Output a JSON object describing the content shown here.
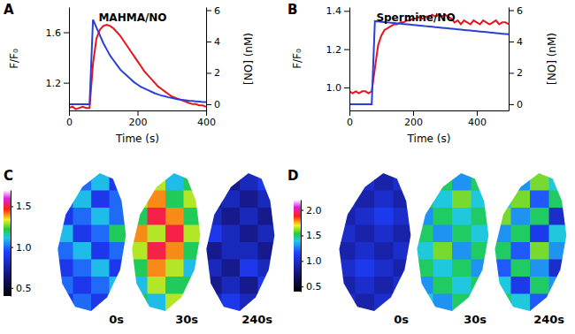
{
  "chart_data": [
    {
      "type": "line",
      "annotations": [
        "A"
      ],
      "title": "MAHMA/NO",
      "x_label": "Time (s)",
      "y_label": "F/F₀",
      "y2_label": "[NO] (nM)",
      "x": [
        0,
        10,
        20,
        30,
        40,
        50,
        60,
        70,
        80,
        90,
        100,
        110,
        120,
        130,
        140,
        150,
        160,
        170,
        180,
        190,
        200,
        210,
        220,
        230,
        240,
        250,
        260,
        270,
        280,
        290,
        300,
        310,
        320,
        330,
        340,
        350,
        360,
        370,
        380,
        390,
        400
      ],
      "xlim": [
        0,
        400
      ],
      "xticks": [
        0,
        200,
        400
      ],
      "ylim": [
        0.98,
        1.8
      ],
      "yticks": [
        1.2,
        1.6
      ],
      "y2lim": [
        -0.4,
        6.2
      ],
      "y2ticks": [
        0,
        2,
        4,
        6
      ],
      "series": [
        {
          "color": "#e8141c",
          "values": [
            1.0,
            1.01,
            0.99,
            1.0,
            1.01,
            1.0,
            1.0,
            1.35,
            1.55,
            1.62,
            1.65,
            1.66,
            1.65,
            1.63,
            1.6,
            1.57,
            1.53,
            1.49,
            1.45,
            1.41,
            1.37,
            1.33,
            1.29,
            1.26,
            1.23,
            1.2,
            1.17,
            1.15,
            1.13,
            1.11,
            1.09,
            1.08,
            1.07,
            1.06,
            1.05,
            1.04,
            1.03,
            1.03,
            1.02,
            1.02,
            1.01
          ]
        },
        {
          "color": "#2a3fd6",
          "axis": "y2",
          "values": [
            0,
            0,
            0,
            0,
            0,
            0,
            0,
            5.4,
            4.9,
            4.4,
            3.9,
            3.5,
            3.1,
            2.8,
            2.5,
            2.2,
            2.0,
            1.8,
            1.6,
            1.4,
            1.25,
            1.1,
            1.0,
            0.9,
            0.8,
            0.7,
            0.62,
            0.55,
            0.5,
            0.44,
            0.4,
            0.35,
            0.31,
            0.28,
            0.25,
            0.22,
            0.2,
            0.18,
            0.16,
            0.14,
            0.13
          ]
        }
      ]
    },
    {
      "type": "line",
      "annotations": [
        "B"
      ],
      "title": "Spermine/NO",
      "x_label": "Time (s)",
      "y_label": "F/F₀",
      "y2_label": "[NO] (nM)",
      "x": [
        0,
        10,
        20,
        30,
        40,
        50,
        60,
        70,
        80,
        90,
        100,
        110,
        120,
        130,
        140,
        150,
        160,
        170,
        180,
        190,
        200,
        210,
        220,
        230,
        240,
        250,
        260,
        270,
        280,
        290,
        300,
        310,
        320,
        330,
        340,
        350,
        360,
        370,
        380,
        390,
        400,
        410,
        420,
        430,
        440,
        450,
        460,
        470,
        480,
        490,
        500
      ],
      "xlim": [
        0,
        500
      ],
      "xticks": [
        0,
        200,
        400
      ],
      "ylim": [
        0.88,
        1.42
      ],
      "yticks": [
        {
          "value": 1,
          "label": "1.0"
        },
        1.2,
        1.4
      ],
      "y2lim": [
        -0.4,
        6.2
      ],
      "y2ticks": [
        0,
        2,
        4,
        6
      ],
      "series": [
        {
          "color": "#e8141c",
          "values": [
            0.98,
            0.97,
            0.98,
            0.97,
            0.98,
            0.98,
            0.97,
            0.98,
            1.1,
            1.22,
            1.27,
            1.3,
            1.31,
            1.32,
            1.33,
            1.33,
            1.34,
            1.34,
            1.35,
            1.35,
            1.36,
            1.36,
            1.37,
            1.36,
            1.37,
            1.37,
            1.38,
            1.37,
            1.38,
            1.37,
            1.38,
            1.37,
            1.36,
            1.34,
            1.35,
            1.33,
            1.35,
            1.34,
            1.33,
            1.35,
            1.34,
            1.33,
            1.35,
            1.34,
            1.33,
            1.34,
            1.35,
            1.33,
            1.34,
            1.34,
            1.33
          ]
        },
        {
          "color": "#2a3fd6",
          "axis": "y2",
          "values": [
            0,
            0,
            0,
            0,
            0,
            0,
            0,
            0,
            5.3,
            5.28,
            5.26,
            5.24,
            5.22,
            5.2,
            5.18,
            5.16,
            5.14,
            5.12,
            5.1,
            5.08,
            5.06,
            5.04,
            5.02,
            5.0,
            4.98,
            4.96,
            4.94,
            4.92,
            4.9,
            4.88,
            4.86,
            4.84,
            4.82,
            4.8,
            4.78,
            4.76,
            4.74,
            4.72,
            4.7,
            4.68,
            4.66,
            4.64,
            4.62,
            4.6,
            4.58,
            4.56,
            4.54,
            4.52,
            4.5,
            4.48,
            4.46
          ]
        }
      ]
    },
    {
      "type": "heatmap",
      "annotations": [
        "C"
      ],
      "color_range": [
        0.4,
        1.7
      ],
      "color_ticks": [
        0.5,
        {
          "value": 1,
          "label": "1.0"
        },
        1.5
      ],
      "images": [
        {
          "label": "0s",
          "cells": [
            [
              0.9,
              1.0,
              1.1,
              0.9
            ],
            [
              1.0,
              1.1,
              0.9,
              1.0
            ],
            [
              0.9,
              1.0,
              1.1,
              1.0
            ],
            [
              1.1,
              0.9,
              1.0,
              1.2
            ],
            [
              1.0,
              1.1,
              0.9,
              1.0
            ],
            [
              0.9,
              1.0,
              1.1,
              0.9
            ],
            [
              1.0,
              0.9,
              1.0,
              1.1
            ],
            [
              0.9,
              1.0,
              0.9,
              1.0
            ]
          ]
        },
        {
          "label": "30s",
          "cells": [
            [
              1.2,
              1.3,
              1.1,
              1.2
            ],
            [
              1.3,
              1.4,
              1.2,
              1.3
            ],
            [
              1.2,
              1.5,
              1.4,
              1.2
            ],
            [
              1.4,
              1.3,
              1.5,
              1.3
            ],
            [
              1.3,
              1.5,
              1.4,
              1.2
            ],
            [
              1.2,
              1.4,
              1.3,
              1.1
            ],
            [
              1.1,
              1.3,
              1.2,
              1.2
            ],
            [
              1.2,
              1.1,
              1.3,
              1.1
            ]
          ]
        },
        {
          "label": "240s",
          "cells": [
            [
              0.8,
              0.7,
              0.8,
              0.9
            ],
            [
              0.7,
              0.8,
              0.7,
              0.8
            ],
            [
              0.8,
              0.7,
              0.8,
              0.7
            ],
            [
              0.9,
              0.8,
              0.7,
              0.8
            ],
            [
              0.7,
              0.8,
              0.8,
              0.7
            ],
            [
              0.8,
              0.7,
              0.9,
              0.8
            ],
            [
              0.7,
              0.8,
              0.7,
              0.9
            ],
            [
              0.8,
              0.9,
              0.8,
              0.7
            ]
          ]
        }
      ]
    },
    {
      "type": "heatmap",
      "annotations": [
        "D"
      ],
      "color_range": [
        0.4,
        2.2
      ],
      "color_ticks": [
        0.5,
        {
          "value": 1,
          "label": "1.0"
        },
        1.5,
        {
          "value": 2,
          "label": "2.0"
        }
      ],
      "images": [
        {
          "label": "0s",
          "cells": [
            [
              0.9,
              1.0,
              0.9,
              1.0
            ],
            [
              1.0,
              0.9,
              1.0,
              0.9
            ],
            [
              0.9,
              1.0,
              1.1,
              1.0
            ],
            [
              1.0,
              0.9,
              1.0,
              0.9
            ],
            [
              0.9,
              1.0,
              0.9,
              1.0
            ],
            [
              1.0,
              1.1,
              1.0,
              0.9
            ],
            [
              0.9,
              1.0,
              0.9,
              1.0
            ],
            [
              1.0,
              0.9,
              1.0,
              0.9
            ]
          ]
        },
        {
          "label": "30s",
          "cells": [
            [
              1.4,
              1.5,
              1.3,
              1.5
            ],
            [
              1.5,
              1.4,
              1.6,
              1.4
            ],
            [
              1.3,
              1.5,
              1.4,
              1.5
            ],
            [
              1.5,
              1.3,
              1.5,
              1.4
            ],
            [
              1.4,
              1.6,
              1.3,
              1.5
            ],
            [
              1.5,
              1.4,
              1.5,
              1.3
            ],
            [
              1.3,
              1.5,
              1.4,
              1.5
            ],
            [
              1.4,
              1.3,
              1.5,
              1.4
            ]
          ]
        },
        {
          "label": "240s",
          "cells": [
            [
              1.5,
              1.3,
              1.6,
              1.4
            ],
            [
              1.4,
              1.6,
              1.2,
              1.5
            ],
            [
              1.6,
              1.3,
              1.5,
              1.0
            ],
            [
              1.3,
              1.5,
              1.1,
              1.4
            ],
            [
              1.5,
              1.2,
              1.6,
              1.3
            ],
            [
              1.2,
              1.5,
              1.3,
              1.0
            ],
            [
              1.4,
              1.1,
              1.5,
              1.3
            ],
            [
              1.5,
              1.4,
              1.2,
              1.5
            ]
          ]
        }
      ]
    }
  ]
}
